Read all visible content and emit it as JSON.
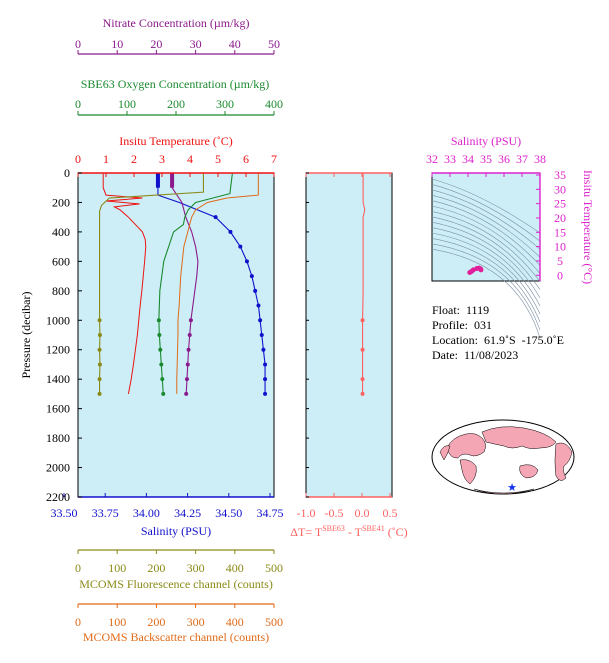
{
  "colors": {
    "nitrate": "#8b1a8b",
    "oxygen": "#1a8a2e",
    "temperature": "#ee1111",
    "salinity": "#1111cc",
    "fluorescence": "#8a8a18",
    "backscatter": "#e06a18",
    "delta": "#ff6060",
    "ts_axis": "#dd22cc",
    "panel_bg": "#cdeef7"
  },
  "main_panel": {
    "nitrate_axis": {
      "label": "Nitrate Concentration (µm/kg)",
      "ticks": [
        "0",
        "10",
        "20",
        "30",
        "40",
        "50"
      ]
    },
    "oxygen_axis": {
      "label": "SBE63 Oxygen Concentration (µm/kg)",
      "ticks": [
        "0",
        "100",
        "200",
        "300",
        "400"
      ]
    },
    "temperature_axis": {
      "label": "Insitu Temperature (˚C)",
      "ticks": [
        "0",
        "1",
        "2",
        "3",
        "4",
        "5",
        "6",
        "7"
      ]
    },
    "salinity_axis": {
      "label": "Salinity (PSU)",
      "ticks": [
        "33.50",
        "33.75",
        "34.00",
        "34.25",
        "34.50",
        "34.75"
      ]
    },
    "fluorescence_axis": {
      "label": "MCOMS Fluorescence channel (counts)",
      "ticks": [
        "0",
        "100",
        "200",
        "300",
        "400",
        "500"
      ]
    },
    "backscatter_axis": {
      "label": "MCOMS Backscatter channel (counts)",
      "ticks": [
        "0",
        "100",
        "200",
        "300",
        "400",
        "500"
      ]
    },
    "pressure_axis": {
      "label": "Pressure (decibar)",
      "ticks": [
        "0",
        "200",
        "400",
        "600",
        "800",
        "1000",
        "1200",
        "1400",
        "1600",
        "1800",
        "2000",
        "2200"
      ]
    }
  },
  "delta_panel": {
    "ticks": [
      "-1.0",
      "-0.5",
      "0.0",
      "0.5"
    ],
    "label": "ΔT= T",
    "label_sup1": "SBE63",
    "label_mid": " - T",
    "label_sup2": "SBE41",
    "label_unit": " (˚C)"
  },
  "ts_panel": {
    "salinity_label": "Salinity (PSU)",
    "salinity_ticks": [
      "32",
      "33",
      "34",
      "35",
      "36",
      "37",
      "38"
    ],
    "temperature_label": "Insitu Temperature (°C)",
    "temperature_ticks": [
      "35",
      "30",
      "25",
      "20",
      "15",
      "10",
      "5",
      "0"
    ]
  },
  "info": {
    "float": "Float:  1119",
    "profile": "Profile:  031",
    "location": "Location:  61.9˚S  -175.0˚E",
    "date": "Date:  11/08/2023"
  },
  "chart_data": [
    {
      "type": "line",
      "name": "Insitu Temperature",
      "x_units": "˚C",
      "xlim": [
        0,
        7
      ],
      "ylim": [
        2200,
        0
      ],
      "pressure": [
        5,
        100,
        150,
        170,
        190,
        210,
        230,
        250,
        300,
        350,
        400,
        450,
        500,
        600,
        700,
        800,
        900,
        1000,
        1100,
        1200,
        1300,
        1400,
        1500
      ],
      "values": [
        0.9,
        0.9,
        1.0,
        2.3,
        1.0,
        2.2,
        1.3,
        1.5,
        1.8,
        2.05,
        2.3,
        2.4,
        2.42,
        2.38,
        2.33,
        2.28,
        2.22,
        2.17,
        2.12,
        2.05,
        1.98,
        1.9,
        1.8
      ]
    },
    {
      "type": "line",
      "name": "Salinity",
      "x_units": "PSU",
      "xlim": [
        33.5,
        34.75
      ],
      "ylim": [
        2200,
        0
      ],
      "pressure": [
        5,
        50,
        100,
        150,
        200,
        300,
        400,
        500,
        600,
        700,
        800,
        900,
        1000,
        1100,
        1200,
        1300,
        1400,
        1500
      ],
      "values": [
        34.07,
        34.07,
        34.07,
        34.07,
        34.2,
        34.42,
        34.51,
        34.57,
        34.61,
        34.64,
        34.66,
        34.68,
        34.69,
        34.7,
        34.71,
        34.72,
        34.72,
        34.72
      ]
    },
    {
      "type": "line",
      "name": "Nitrate",
      "x_units": "µm/kg",
      "xlim": [
        0,
        50
      ],
      "ylim": [
        2200,
        0
      ],
      "pressure": [
        5,
        100,
        200,
        300,
        400,
        500,
        600,
        700,
        800,
        900,
        1000,
        1100,
        1200,
        1300,
        1400,
        1500
      ],
      "values": [
        24,
        24,
        26.5,
        27.5,
        29,
        30,
        30.6,
        30.3,
        29.8,
        29.3,
        28.8,
        28.5,
        28.2,
        28.0,
        27.8,
        27.6
      ]
    },
    {
      "type": "line",
      "name": "SBE63 Oxygen",
      "x_units": "µm/kg",
      "xlim": [
        0,
        400
      ],
      "ylim": [
        2200,
        0
      ],
      "pressure": [
        5,
        140,
        200,
        250,
        300,
        350,
        400,
        600,
        800,
        1000,
        1100,
        1200,
        1300,
        1400,
        1500
      ],
      "values": [
        315,
        310,
        240,
        225,
        218,
        215,
        195,
        175,
        167,
        165,
        166,
        168,
        170,
        172,
        174
      ]
    },
    {
      "type": "line",
      "name": "MCOMS Fluorescence",
      "x_units": "counts",
      "xlim": [
        0,
        500
      ],
      "ylim": [
        2200,
        0
      ],
      "pressure": [
        5,
        130,
        170,
        220,
        260,
        300,
        400,
        600,
        800,
        1000,
        1100,
        1200,
        1300,
        1400,
        1500
      ],
      "values": [
        320,
        320,
        80,
        60,
        55,
        55,
        55,
        55,
        55,
        55,
        56,
        55,
        56,
        55,
        55
      ]
    },
    {
      "type": "line",
      "name": "MCOMS Backscatter",
      "x_units": "counts",
      "xlim": [
        0,
        500
      ],
      "ylim": [
        2200,
        0
      ],
      "pressure": [
        5,
        150,
        170,
        200,
        250,
        300,
        400,
        500,
        700,
        900,
        1000,
        1100,
        1200,
        1300,
        1400,
        1500
      ],
      "values": [
        460,
        460,
        380,
        330,
        300,
        290,
        280,
        270,
        262,
        258,
        255,
        255,
        254,
        253,
        252,
        252
      ]
    },
    {
      "type": "line",
      "name": "Delta T",
      "x_units": "˚C",
      "xlim": [
        -1.0,
        0.5
      ],
      "ylim": [
        2200,
        0
      ],
      "pressure": [
        5,
        100,
        200,
        250,
        300,
        400,
        600,
        800,
        1000,
        1200,
        1400,
        1500
      ],
      "values": [
        0.02,
        0.02,
        0.02,
        0.05,
        0.02,
        0.02,
        0.02,
        0.02,
        0.01,
        0.01,
        0.01,
        0.01
      ]
    },
    {
      "type": "scatter",
      "name": "T-S diagram",
      "xlim": [
        32,
        38
      ],
      "ylim": [
        -2,
        35
      ],
      "salinity": [
        34.1,
        34.2,
        34.3,
        34.5,
        34.6,
        34.65,
        34.7,
        34.72
      ],
      "temperature": [
        0.9,
        1.3,
        1.8,
        2.3,
        2.4,
        2.3,
        2.1,
        1.8
      ]
    }
  ]
}
